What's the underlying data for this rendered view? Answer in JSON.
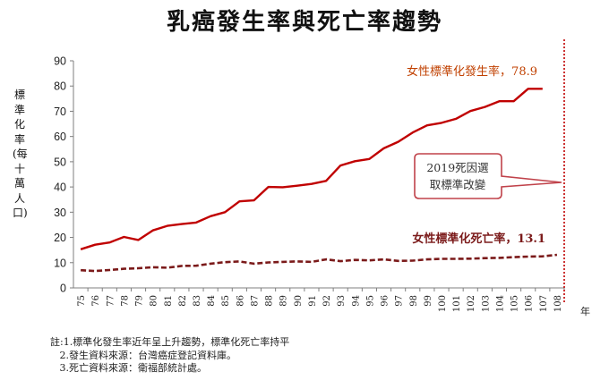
{
  "page_title": "乳癌發生率與死亡率趨勢",
  "notes": [
    "註:1.標準化發生率近年呈上升趨勢，標準化死亡率持平",
    "   2.發生資料來源：台灣癌症登記資料庫。",
    "   3.死亡資料來源：衛福部統計處。"
  ],
  "annotation_box": {
    "line1": "2019死因選",
    "line2": "取標準改變"
  },
  "chart_data": {
    "type": "line",
    "title": "乳癌發生率與死亡率趨勢",
    "ylabel": "標準化率(每十萬人口)",
    "xlabel": "年",
    "ylim": [
      0,
      90
    ],
    "yticks": [
      0,
      10,
      20,
      30,
      40,
      50,
      60,
      70,
      80,
      90
    ],
    "x": [
      75,
      76,
      77,
      78,
      79,
      80,
      81,
      82,
      83,
      84,
      85,
      86,
      87,
      88,
      89,
      90,
      91,
      92,
      93,
      94,
      95,
      96,
      97,
      98,
      99,
      100,
      101,
      102,
      103,
      104,
      105,
      106,
      107,
      108
    ],
    "grid": false,
    "series": [
      {
        "name": "女性標準化發生率",
        "label": "女性標準化發生率，78.9",
        "color": "#c00000",
        "style": "solid",
        "values": [
          15.3,
          17.1,
          18.0,
          20.2,
          19.0,
          22.8,
          24.6,
          25.3,
          25.9,
          28.4,
          30.0,
          34.3,
          34.7,
          40.0,
          39.9,
          40.5,
          41.2,
          42.4,
          48.5,
          50.2,
          51.1,
          55.3,
          57.9,
          61.6,
          64.4,
          65.4,
          67.0,
          70.1,
          71.7,
          74.0,
          74.0,
          78.9,
          78.9,
          null
        ]
      },
      {
        "name": "女性標準化死亡率",
        "label": "女性標準化死亡率，13.1",
        "color": "#7b1a1a",
        "style": "dashed",
        "values": [
          7.0,
          6.7,
          7.1,
          7.6,
          7.8,
          8.2,
          8.0,
          8.7,
          8.8,
          9.6,
          10.2,
          10.5,
          9.6,
          10.1,
          10.3,
          10.5,
          10.3,
          11.3,
          10.6,
          11.1,
          10.9,
          11.3,
          10.7,
          10.8,
          11.3,
          11.5,
          11.5,
          11.6,
          11.8,
          11.9,
          12.2,
          12.4,
          12.5,
          13.1
        ]
      }
    ]
  }
}
